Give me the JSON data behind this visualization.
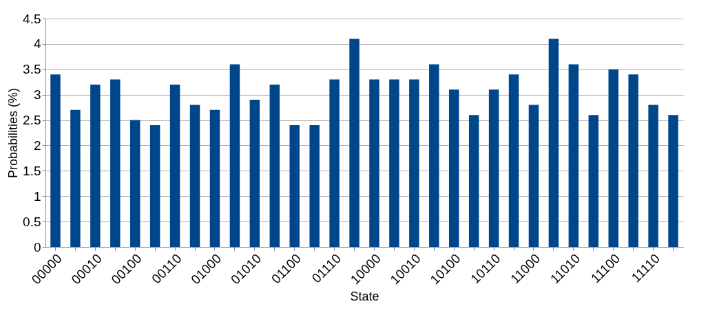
{
  "chart_data": {
    "type": "bar",
    "xlabel": "State",
    "ylabel": "Probabilities (%)",
    "categories": [
      "00000",
      null,
      "00010",
      null,
      "00100",
      null,
      "00110",
      null,
      "01000",
      null,
      "01010",
      null,
      "01100",
      null,
      "01110",
      null,
      "10000",
      null,
      "10010",
      null,
      "10100",
      null,
      "10110",
      null,
      "11000",
      null,
      "11010",
      null,
      "11100",
      null,
      "11110",
      null
    ],
    "values": [
      3.4,
      2.7,
      3.2,
      3.3,
      2.5,
      2.4,
      3.2,
      2.8,
      2.7,
      3.6,
      2.9,
      3.2,
      2.4,
      2.4,
      3.3,
      4.1,
      3.3,
      3.3,
      3.3,
      3.6,
      3.1,
      2.6,
      3.1,
      3.4,
      2.8,
      4.1,
      3.6,
      2.6,
      3.5,
      3.4,
      2.8,
      2.6
    ],
    "color": "#00468b",
    "ylim": [
      0,
      4.5
    ],
    "yticks": [
      0,
      0.5,
      1,
      1.5,
      2,
      2.5,
      3,
      3.5,
      4,
      4.5
    ],
    "grid": "y"
  }
}
